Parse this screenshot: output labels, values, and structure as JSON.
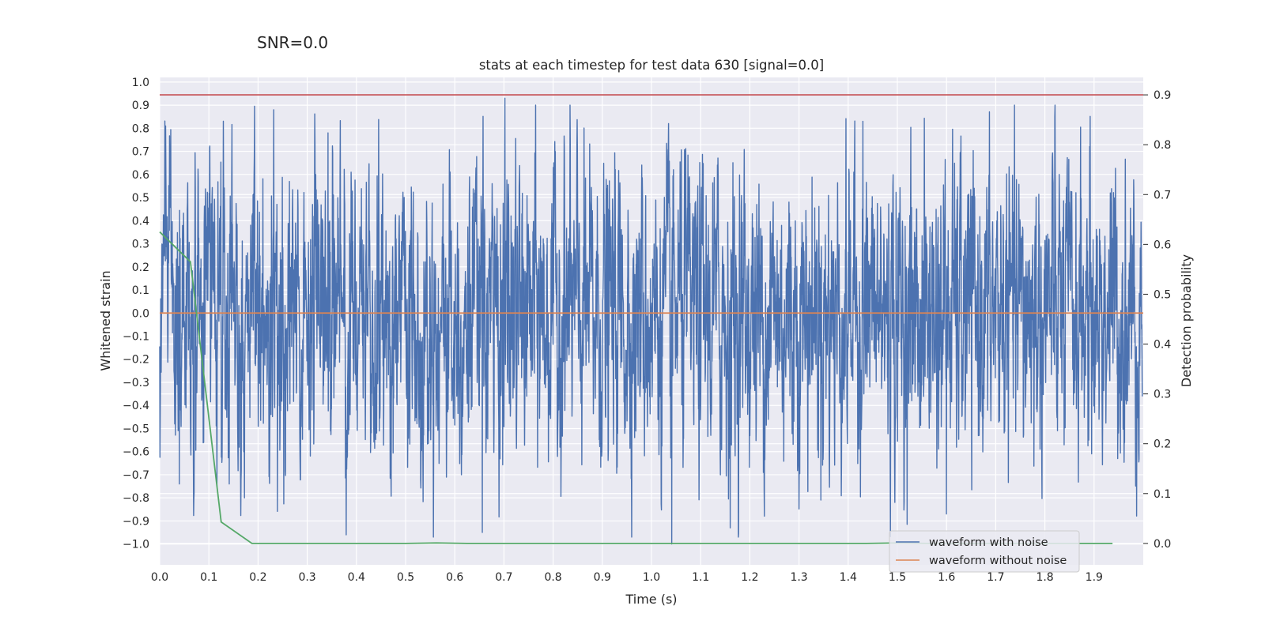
{
  "suptitle": "SNR=0.0",
  "chart_data": {
    "type": "line",
    "title": "stats at each timestep for test data 630 [signal=0.0]",
    "xlabel": "Time (s)",
    "ylabel": "Whitened strain",
    "y2label": "Detection probability",
    "xlim": [
      0.0,
      2.0
    ],
    "ylim": [
      -1.09,
      1.02
    ],
    "y2lim": [
      -0.043,
      0.935
    ],
    "xticks": [
      "0.0",
      "0.1",
      "0.2",
      "0.3",
      "0.4",
      "0.5",
      "0.6",
      "0.7",
      "0.8",
      "0.9",
      "1.0",
      "1.1",
      "1.2",
      "1.3",
      "1.4",
      "1.5",
      "1.6",
      "1.7",
      "1.8",
      "1.9"
    ],
    "yticks": [
      "1.0",
      "0.9",
      "0.8",
      "0.7",
      "0.6",
      "0.5",
      "0.4",
      "0.3",
      "0.2",
      "0.1",
      "0.0",
      "−0.1",
      "−0.2",
      "−0.3",
      "−0.4",
      "−0.5",
      "−0.6",
      "−0.7",
      "−0.8",
      "−0.9",
      "−1.0"
    ],
    "y2ticks": [
      "0.9",
      "0.8",
      "0.7",
      "0.6",
      "0.5",
      "0.4",
      "0.3",
      "0.2",
      "0.1",
      "0.0"
    ],
    "grid": true,
    "legend_position": "lower-right",
    "colors": {
      "noise": "#4c72b0",
      "clean": "#dd8452",
      "probability": "#55a868",
      "threshold": "#c44e52",
      "background": "#eaeaf2"
    },
    "series": [
      {
        "name": "waveform with noise",
        "axis": "left",
        "note": "whitened noisy strain sampled 2048 Hz (~4096 samples), values range roughly -1.0 to 0.93",
        "peaks": [
          {
            "t": 0.012,
            "v": 0.81
          },
          {
            "t": 0.232,
            "v": 0.88
          },
          {
            "t": 0.342,
            "v": 0.78
          },
          {
            "t": 0.702,
            "v": 0.93
          },
          {
            "t": 0.656,
            "v": -0.95
          },
          {
            "t": 1.041,
            "v": -1.0
          },
          {
            "t": 1.16,
            "v": -0.93
          },
          {
            "t": 1.43,
            "v": 0.83
          },
          {
            "t": 1.6,
            "v": -0.87
          },
          {
            "t": 1.82,
            "v": 0.85
          },
          {
            "t": 0.04,
            "v": -0.74
          }
        ]
      },
      {
        "name": "waveform without noise",
        "axis": "left",
        "x": [
          0.0,
          2.0
        ],
        "values": [
          0.0,
          0.0
        ]
      },
      {
        "name": "detection probability",
        "axis": "right",
        "in_legend": false,
        "x": [
          0.0,
          0.0625,
          0.125,
          0.1875,
          0.25,
          0.3125,
          0.375,
          0.4375,
          0.5,
          0.5625,
          0.625,
          0.6875,
          0.75,
          0.8125,
          0.875,
          0.9375,
          1.0,
          1.0625,
          1.125,
          1.1875,
          1.25,
          1.3125,
          1.375,
          1.4375,
          1.5,
          1.5625,
          1.625,
          1.6875,
          1.75,
          1.8125,
          1.875,
          1.9375
        ],
        "values": [
          0.625,
          0.565,
          0.043,
          0.0,
          0.0,
          0.0,
          0.0,
          0.0,
          0.0,
          0.001,
          0.0,
          0.0,
          0.0,
          0.0,
          0.0,
          0.0,
          0.0,
          0.0,
          0.0,
          0.0,
          0.0,
          0.0,
          0.0,
          0.0,
          0.001,
          0.0,
          0.0,
          0.0,
          0.0,
          0.0,
          0.0,
          0.0
        ]
      },
      {
        "name": "threshold",
        "axis": "right",
        "in_legend": false,
        "x": [
          0.0,
          2.0
        ],
        "values": [
          0.9,
          0.9
        ]
      }
    ]
  }
}
